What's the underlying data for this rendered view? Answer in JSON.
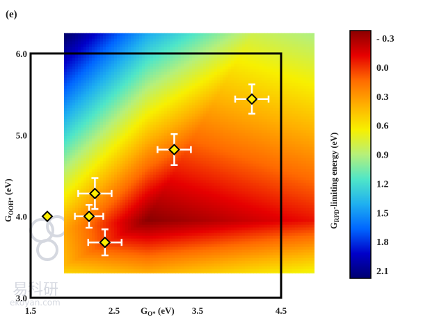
{
  "panel_label": "(e)",
  "watermark": {
    "text_cn": "易科研",
    "text_en": "ekoyan.com"
  },
  "chart_data": {
    "type": "heatmap",
    "x_axis": {
      "label": "G",
      "label_sub": "O*",
      "label_unit": " (eV)",
      "range": [
        1.5,
        4.5
      ],
      "ticks": [
        1.5,
        2.5,
        3.5,
        4.5
      ],
      "tick_labels": [
        "1.5",
        "2.5",
        "3.5",
        "4.5"
      ]
    },
    "y_axis": {
      "label": "G",
      "label_sub": "OOH*",
      "label_unit": " (eV)",
      "range": [
        3.0,
        6.0
      ],
      "ticks": [
        3.0,
        4.0,
        5.0,
        6.0
      ],
      "tick_labels": [
        "3.0",
        "4.0",
        "5.0",
        "6.0"
      ]
    },
    "heatmap": {
      "x_range": [
        1.9,
        4.9
      ],
      "y_range": [
        3.3,
        6.25
      ],
      "min_point": {
        "x": 2.9,
        "y": 3.95
      },
      "colorscale": [
        "#8b0000",
        "#e60000",
        "#ff6a00",
        "#ffb000",
        "#f7f000",
        "#b6f07a",
        "#4fe6c8",
        "#1fb0f0",
        "#0066ff",
        "#0000c8",
        "#000070"
      ]
    },
    "colorbar": {
      "label": "G",
      "label_sub": "RPD",
      "label_rest": "-limiting energy (eV)",
      "range": [
        -0.3,
        2.1
      ],
      "ticks": [
        -0.3,
        0.0,
        0.3,
        0.6,
        0.9,
        1.2,
        1.5,
        1.8,
        2.1
      ],
      "tick_labels": [
        "- 0.3",
        "0.0",
        "0.3",
        "0.6",
        "0.9",
        "1.2",
        "1.5",
        "1.8",
        "2.1"
      ]
    },
    "points": [
      {
        "x": 1.7,
        "y": 4.0,
        "xerr": 0.0,
        "yerr": 0.0
      },
      {
        "x": 2.2,
        "y": 4.0,
        "xerr": 0.17,
        "yerr": 0.14
      },
      {
        "x": 2.27,
        "y": 4.28,
        "xerr": 0.2,
        "yerr": 0.19
      },
      {
        "x": 2.39,
        "y": 3.68,
        "xerr": 0.2,
        "yerr": 0.16
      },
      {
        "x": 3.22,
        "y": 4.82,
        "xerr": 0.2,
        "yerr": 0.19
      },
      {
        "x": 4.15,
        "y": 5.44,
        "xerr": 0.2,
        "yerr": 0.18
      }
    ],
    "grid": false,
    "marker": {
      "shape": "diamond",
      "fill": "#ffee00",
      "stroke": "#000000"
    }
  }
}
